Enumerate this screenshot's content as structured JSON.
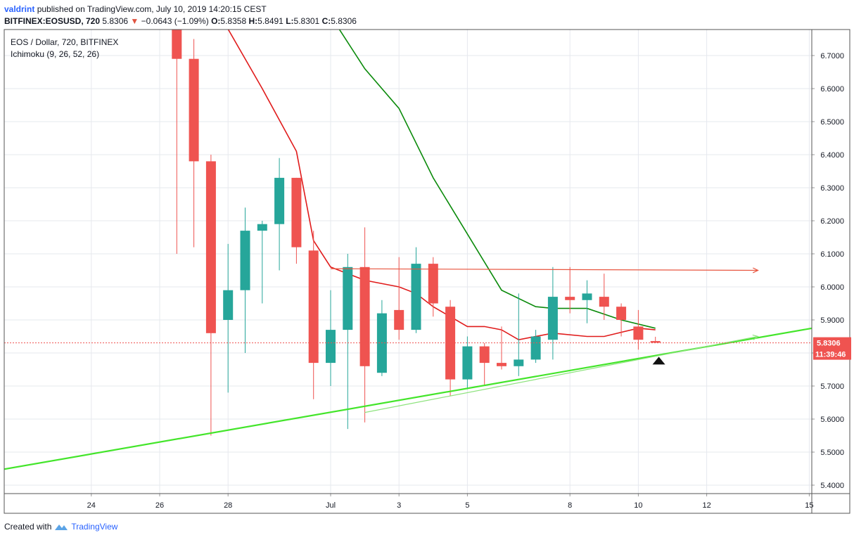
{
  "header": {
    "author": "valdrint",
    "published_text": "published on TradingView.com, July 10, 2019 14:20:15 CEST",
    "symbol": "BITFINEX:EOSUSD, 720",
    "price": "5.8306",
    "change": "−0.0643 (−1.09%)",
    "down_arrow": "▼",
    "ohlc": {
      "o_label": "O:",
      "o": "5.8358",
      "h_label": "H:",
      "h": "5.8491",
      "l_label": "L:",
      "l": "5.8301",
      "c_label": "C:",
      "c": "5.8306"
    }
  },
  "legend": {
    "title": "EOS / Dollar, 720, BITFINEX",
    "indicator": "Ichimoku (9, 26, 52, 26)"
  },
  "price_label": "5.8306",
  "countdown_label": "11:39:46",
  "footer": {
    "created_with": "Created with",
    "brand": "TradingView"
  },
  "colors": {
    "bull": "#26a69a",
    "bear": "#ef5350",
    "conversion": "#e01b1b",
    "base": "#0a8a0a",
    "trendline": "#43e52a",
    "grid": "#e6e8ee",
    "price_line": "#ef5350"
  },
  "chart_data": {
    "type": "candlestick",
    "title": "EOS / Dollar, 720, BITFINEX",
    "interval": "720",
    "ylim": [
      5.37,
      6.78
    ],
    "y_ticks": [
      "5.4000",
      "5.5000",
      "5.6000",
      "5.7000",
      "5.8000",
      "5.9000",
      "6.0000",
      "6.1000",
      "6.2000",
      "6.3000",
      "6.4000",
      "6.5000",
      "6.6000",
      "6.7000"
    ],
    "x_ticks": [
      "24",
      "26",
      "28",
      "Jul",
      "3",
      "5",
      "8",
      "10",
      "12",
      "15"
    ],
    "x_tick_days": [
      24,
      26,
      28,
      31,
      33,
      35,
      38,
      40,
      42,
      45
    ],
    "day_note": "day numbers continue past June 30: 31 = Jul 1",
    "candles": [
      {
        "t": 26.5,
        "o": 6.85,
        "h": 6.9,
        "l": 6.1,
        "c": 6.69
      },
      {
        "t": 27.0,
        "o": 6.69,
        "h": 6.75,
        "l": 6.12,
        "c": 6.38
      },
      {
        "t": 27.5,
        "o": 6.38,
        "h": 6.4,
        "l": 5.55,
        "c": 5.86
      },
      {
        "t": 28.0,
        "o": 5.9,
        "h": 6.13,
        "l": 5.68,
        "c": 5.99
      },
      {
        "t": 28.5,
        "o": 5.99,
        "h": 6.24,
        "l": 5.8,
        "c": 6.17
      },
      {
        "t": 29.0,
        "o": 6.17,
        "h": 6.2,
        "l": 5.95,
        "c": 6.19
      },
      {
        "t": 29.5,
        "o": 6.19,
        "h": 6.39,
        "l": 6.05,
        "c": 6.33
      },
      {
        "t": 30.0,
        "o": 6.33,
        "h": 6.33,
        "l": 6.07,
        "c": 6.12
      },
      {
        "t": 30.5,
        "o": 6.11,
        "h": 6.17,
        "l": 5.66,
        "c": 5.77
      },
      {
        "t": 31.0,
        "o": 5.77,
        "h": 5.99,
        "l": 5.7,
        "c": 5.87
      },
      {
        "t": 31.5,
        "o": 5.87,
        "h": 6.1,
        "l": 5.57,
        "c": 6.06
      },
      {
        "t": 32.0,
        "o": 6.06,
        "h": 6.18,
        "l": 5.59,
        "c": 5.76
      },
      {
        "t": 32.5,
        "o": 5.74,
        "h": 5.96,
        "l": 5.73,
        "c": 5.92
      },
      {
        "t": 33.0,
        "o": 5.93,
        "h": 6.09,
        "l": 5.84,
        "c": 5.87
      },
      {
        "t": 33.5,
        "o": 5.87,
        "h": 6.12,
        "l": 5.86,
        "c": 6.07
      },
      {
        "t": 34.0,
        "o": 6.07,
        "h": 6.09,
        "l": 5.91,
        "c": 5.95
      },
      {
        "t": 34.5,
        "o": 5.94,
        "h": 5.96,
        "l": 5.67,
        "c": 5.72
      },
      {
        "t": 35.0,
        "o": 5.72,
        "h": 5.85,
        "l": 5.69,
        "c": 5.82
      },
      {
        "t": 35.5,
        "o": 5.82,
        "h": 5.83,
        "l": 5.7,
        "c": 5.77
      },
      {
        "t": 36.0,
        "o": 5.77,
        "h": 5.88,
        "l": 5.75,
        "c": 5.76
      },
      {
        "t": 36.5,
        "o": 5.76,
        "h": 5.98,
        "l": 5.73,
        "c": 5.78
      },
      {
        "t": 37.0,
        "o": 5.78,
        "h": 5.87,
        "l": 5.77,
        "c": 5.85
      },
      {
        "t": 37.5,
        "o": 5.84,
        "h": 6.06,
        "l": 5.78,
        "c": 5.97
      },
      {
        "t": 38.0,
        "o": 5.97,
        "h": 6.06,
        "l": 5.92,
        "c": 5.96
      },
      {
        "t": 38.5,
        "o": 5.96,
        "h": 6.02,
        "l": 5.89,
        "c": 5.98
      },
      {
        "t": 39.0,
        "o": 5.97,
        "h": 6.04,
        "l": 5.9,
        "c": 5.94
      },
      {
        "t": 39.5,
        "o": 5.94,
        "h": 5.95,
        "l": 5.85,
        "c": 5.9
      },
      {
        "t": 40.0,
        "o": 5.88,
        "h": 5.93,
        "l": 5.81,
        "c": 5.84
      },
      {
        "t": 40.5,
        "o": 5.836,
        "h": 5.849,
        "l": 5.83,
        "c": 5.831
      }
    ],
    "conversion_line": [
      [
        26.5,
        6.95
      ],
      [
        28.0,
        6.78
      ],
      [
        29.0,
        6.6
      ],
      [
        30.0,
        6.41
      ],
      [
        30.5,
        6.14
      ],
      [
        31.0,
        6.06
      ],
      [
        32.0,
        6.02
      ],
      [
        33.0,
        6.0
      ],
      [
        33.5,
        5.98
      ],
      [
        34.0,
        5.94
      ],
      [
        35.0,
        5.88
      ],
      [
        35.5,
        5.88
      ],
      [
        36.0,
        5.87
      ],
      [
        36.5,
        5.84
      ],
      [
        37.5,
        5.86
      ],
      [
        38.5,
        5.85
      ],
      [
        39.0,
        5.85
      ],
      [
        40.0,
        5.875
      ],
      [
        40.5,
        5.87
      ]
    ],
    "base_line": [
      [
        30.0,
        6.96
      ],
      [
        31.0,
        6.82
      ],
      [
        32.0,
        6.66
      ],
      [
        33.0,
        6.54
      ],
      [
        34.0,
        6.33
      ],
      [
        36.0,
        5.99
      ],
      [
        37.0,
        5.94
      ],
      [
        37.5,
        5.935
      ],
      [
        38.5,
        5.935
      ],
      [
        39.5,
        5.9
      ],
      [
        40.5,
        5.875
      ]
    ],
    "drawings": {
      "resistance": {
        "from": [
          31.0,
          6.055
        ],
        "to": [
          43.5,
          6.05
        ]
      },
      "support_trendline": {
        "from": [
          19.6,
          5.415
        ],
        "to": [
          46.2,
          5.895
        ]
      },
      "support_thin": {
        "from": [
          32.0,
          5.62
        ],
        "to": [
          43.5,
          5.85
        ]
      },
      "marker": {
        "t": 40.6,
        "y": 5.78
      }
    }
  }
}
